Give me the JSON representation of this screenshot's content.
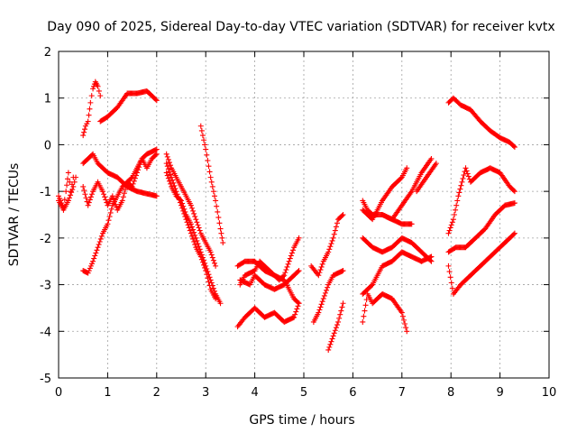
{
  "chart_data": {
    "type": "scatter",
    "title": "Day 090 of 2025, Sidereal Day-to-day VTEC variation (SDTVAR) for receiver kvtx",
    "xlabel": "GPS time / hours",
    "ylabel": "SDTVAR / TECUs",
    "xlim": [
      0,
      10
    ],
    "ylim": [
      -5,
      2
    ],
    "xticks": [
      0,
      1,
      2,
      3,
      4,
      5,
      6,
      7,
      8,
      9,
      10
    ],
    "yticks": [
      -5,
      -4,
      -3,
      -2,
      -1,
      0,
      1,
      2
    ],
    "grid": true,
    "marker": "plus",
    "color": "#ff0000",
    "series": [
      {
        "segments": [
          [
            [
              0.0,
              -1.1
            ],
            [
              0.1,
              -1.35
            ],
            [
              0.15,
              -1.0
            ],
            [
              0.2,
              -0.6
            ],
            [
              0.25,
              -1.0
            ],
            [
              0.3,
              -0.7
            ]
          ],
          [
            [
              0.0,
              -1.2
            ],
            [
              0.1,
              -1.4
            ],
            [
              0.2,
              -1.2
            ],
            [
              0.3,
              -0.9
            ],
            [
              0.35,
              -0.7
            ]
          ]
        ]
      },
      {
        "segments": [
          [
            [
              0.5,
              0.2
            ],
            [
              0.55,
              0.4
            ],
            [
              0.6,
              0.5
            ],
            [
              0.65,
              0.9
            ],
            [
              0.7,
              1.2
            ],
            [
              0.75,
              1.35
            ],
            [
              0.8,
              1.25
            ],
            [
              0.85,
              1.05
            ]
          ],
          [
            [
              0.85,
              0.5
            ],
            [
              1.0,
              0.6
            ],
            [
              1.2,
              0.8
            ],
            [
              1.4,
              1.1
            ],
            [
              1.6,
              1.1
            ],
            [
              1.8,
              1.15
            ],
            [
              2.0,
              0.95
            ]
          ],
          [
            [
              0.5,
              -0.4
            ],
            [
              0.6,
              -0.3
            ],
            [
              0.7,
              -0.2
            ],
            [
              0.8,
              -0.4
            ],
            [
              1.0,
              -0.6
            ],
            [
              1.2,
              -0.7
            ],
            [
              1.4,
              -0.9
            ],
            [
              1.6,
              -1.0
            ],
            [
              1.8,
              -1.05
            ],
            [
              2.0,
              -1.1
            ]
          ],
          [
            [
              0.5,
              -0.9
            ],
            [
              0.6,
              -1.3
            ],
            [
              0.7,
              -1.0
            ],
            [
              0.8,
              -0.8
            ],
            [
              0.9,
              -1.0
            ],
            [
              1.0,
              -1.3
            ],
            [
              1.1,
              -1.1
            ],
            [
              1.2,
              -1.4
            ],
            [
              1.3,
              -1.2
            ],
            [
              1.4,
              -0.8
            ],
            [
              1.5,
              -0.9
            ],
            [
              1.6,
              -0.6
            ],
            [
              1.7,
              -0.3
            ],
            [
              1.8,
              -0.5
            ],
            [
              1.9,
              -0.3
            ],
            [
              2.0,
              -0.2
            ]
          ],
          [
            [
              0.5,
              -2.7
            ],
            [
              0.6,
              -2.75
            ],
            [
              0.7,
              -2.5
            ],
            [
              0.8,
              -2.2
            ],
            [
              0.9,
              -1.9
            ],
            [
              1.0,
              -1.7
            ],
            [
              1.1,
              -1.3
            ],
            [
              1.2,
              -1.1
            ],
            [
              1.3,
              -0.9
            ],
            [
              1.4,
              -0.8
            ],
            [
              1.5,
              -0.7
            ],
            [
              1.6,
              -0.5
            ],
            [
              1.7,
              -0.3
            ],
            [
              1.8,
              -0.2
            ],
            [
              1.9,
              -0.15
            ],
            [
              2.0,
              -0.1
            ]
          ]
        ]
      },
      {
        "segments": [
          [
            [
              2.2,
              -0.2
            ],
            [
              2.3,
              -0.5
            ],
            [
              2.4,
              -0.7
            ],
            [
              2.5,
              -0.9
            ],
            [
              2.6,
              -1.1
            ],
            [
              2.7,
              -1.3
            ],
            [
              2.8,
              -1.6
            ],
            [
              2.9,
              -1.9
            ],
            [
              3.0,
              -2.1
            ],
            [
              3.1,
              -2.3
            ],
            [
              3.2,
              -2.6
            ]
          ],
          [
            [
              2.2,
              -0.6
            ],
            [
              2.3,
              -0.9
            ],
            [
              2.4,
              -1.1
            ],
            [
              2.5,
              -1.2
            ],
            [
              2.6,
              -1.5
            ],
            [
              2.7,
              -1.7
            ],
            [
              2.8,
              -2.0
            ],
            [
              2.9,
              -2.3
            ],
            [
              3.0,
              -2.6
            ],
            [
              3.1,
              -2.9
            ],
            [
              3.2,
              -3.2
            ],
            [
              3.3,
              -3.4
            ]
          ],
          [
            [
              2.2,
              -0.4
            ],
            [
              2.3,
              -0.7
            ],
            [
              2.4,
              -1.0
            ],
            [
              2.5,
              -1.3
            ],
            [
              2.6,
              -1.6
            ],
            [
              2.7,
              -1.9
            ],
            [
              2.8,
              -2.2
            ],
            [
              2.9,
              -2.4
            ],
            [
              3.0,
              -2.7
            ],
            [
              3.1,
              -3.1
            ],
            [
              3.2,
              -3.3
            ]
          ],
          [
            [
              2.9,
              0.4
            ],
            [
              3.0,
              -0.1
            ],
            [
              3.1,
              -0.7
            ],
            [
              3.2,
              -1.2
            ],
            [
              3.3,
              -1.8
            ],
            [
              3.35,
              -2.1
            ]
          ]
        ]
      },
      {
        "segments": [
          [
            [
              3.65,
              -2.6
            ],
            [
              3.8,
              -2.5
            ],
            [
              4.0,
              -2.5
            ],
            [
              4.2,
              -2.7
            ],
            [
              4.4,
              -2.8
            ],
            [
              4.6,
              -2.9
            ],
            [
              4.8,
              -3.3
            ],
            [
              4.9,
              -3.4
            ]
          ],
          [
            [
              3.7,
              -3.0
            ],
            [
              3.8,
              -2.8
            ],
            [
              4.0,
              -2.7
            ],
            [
              4.1,
              -2.5
            ],
            [
              4.3,
              -2.7
            ],
            [
              4.5,
              -2.9
            ],
            [
              4.6,
              -2.8
            ],
            [
              4.7,
              -2.5
            ],
            [
              4.8,
              -2.2
            ],
            [
              4.9,
              -2.0
            ]
          ],
          [
            [
              3.7,
              -2.9
            ],
            [
              3.9,
              -3.0
            ],
            [
              4.0,
              -2.8
            ],
            [
              4.2,
              -3.0
            ],
            [
              4.4,
              -3.1
            ],
            [
              4.6,
              -3.0
            ],
            [
              4.8,
              -2.8
            ],
            [
              4.9,
              -2.7
            ]
          ],
          [
            [
              3.65,
              -3.9
            ],
            [
              3.8,
              -3.7
            ],
            [
              4.0,
              -3.5
            ],
            [
              4.2,
              -3.7
            ],
            [
              4.4,
              -3.6
            ],
            [
              4.6,
              -3.8
            ],
            [
              4.8,
              -3.7
            ],
            [
              4.9,
              -3.4
            ]
          ]
        ]
      },
      {
        "segments": [
          [
            [
              5.15,
              -2.6
            ],
            [
              5.3,
              -2.8
            ],
            [
              5.4,
              -2.5
            ],
            [
              5.5,
              -2.3
            ],
            [
              5.6,
              -2.0
            ],
            [
              5.7,
              -1.6
            ],
            [
              5.8,
              -1.5
            ]
          ],
          [
            [
              5.2,
              -3.8
            ],
            [
              5.3,
              -3.6
            ],
            [
              5.4,
              -3.3
            ],
            [
              5.5,
              -3.0
            ],
            [
              5.6,
              -2.8
            ],
            [
              5.8,
              -2.7
            ]
          ],
          [
            [
              5.5,
              -4.4
            ],
            [
              5.6,
              -4.1
            ],
            [
              5.7,
              -3.8
            ],
            [
              5.8,
              -3.4
            ]
          ]
        ]
      },
      {
        "segments": [
          [
            [
              6.2,
              -1.2
            ],
            [
              6.3,
              -1.4
            ],
            [
              6.4,
              -1.5
            ],
            [
              6.6,
              -1.5
            ],
            [
              6.8,
              -1.6
            ],
            [
              7.0,
              -1.7
            ],
            [
              7.2,
              -1.7
            ]
          ],
          [
            [
              6.2,
              -2.0
            ],
            [
              6.4,
              -2.2
            ],
            [
              6.6,
              -2.3
            ],
            [
              6.8,
              -2.2
            ],
            [
              7.0,
              -2.0
            ],
            [
              7.2,
              -2.1
            ],
            [
              7.4,
              -2.3
            ],
            [
              7.6,
              -2.5
            ]
          ],
          [
            [
              6.2,
              -3.2
            ],
            [
              6.4,
              -3.0
            ],
            [
              6.5,
              -2.8
            ],
            [
              6.6,
              -2.6
            ],
            [
              6.8,
              -2.5
            ],
            [
              7.0,
              -2.3
            ],
            [
              7.2,
              -2.4
            ],
            [
              7.4,
              -2.5
            ],
            [
              7.6,
              -2.4
            ]
          ],
          [
            [
              6.2,
              -3.8
            ],
            [
              6.3,
              -3.2
            ],
            [
              6.4,
              -3.4
            ],
            [
              6.6,
              -3.2
            ],
            [
              6.8,
              -3.3
            ],
            [
              7.0,
              -3.6
            ],
            [
              7.1,
              -4.0
            ]
          ],
          [
            [
              6.2,
              -1.4
            ],
            [
              6.4,
              -1.6
            ],
            [
              6.6,
              -1.2
            ],
            [
              6.8,
              -0.9
            ],
            [
              7.0,
              -0.7
            ],
            [
              7.1,
              -0.5
            ]
          ],
          [
            [
              6.6,
              -1.5
            ],
            [
              6.8,
              -1.6
            ],
            [
              7.0,
              -1.3
            ],
            [
              7.2,
              -1.0
            ],
            [
              7.4,
              -0.6
            ],
            [
              7.6,
              -0.3
            ]
          ],
          [
            [
              7.3,
              -1.0
            ],
            [
              7.5,
              -0.7
            ],
            [
              7.7,
              -0.4
            ]
          ]
        ]
      },
      {
        "segments": [
          [
            [
              7.95,
              0.9
            ],
            [
              8.05,
              1.0
            ],
            [
              8.2,
              0.85
            ],
            [
              8.4,
              0.75
            ],
            [
              8.6,
              0.5
            ],
            [
              8.8,
              0.3
            ],
            [
              9.0,
              0.15
            ],
            [
              9.2,
              0.05
            ],
            [
              9.3,
              -0.05
            ]
          ],
          [
            [
              7.95,
              -1.9
            ],
            [
              8.05,
              -1.6
            ],
            [
              8.15,
              -1.1
            ],
            [
              8.3,
              -0.5
            ],
            [
              8.4,
              -0.8
            ],
            [
              8.6,
              -0.6
            ],
            [
              8.8,
              -0.5
            ],
            [
              9.0,
              -0.6
            ],
            [
              9.2,
              -0.9
            ],
            [
              9.3,
              -1.0
            ]
          ],
          [
            [
              7.95,
              -2.3
            ],
            [
              8.1,
              -2.2
            ],
            [
              8.3,
              -2.2
            ],
            [
              8.5,
              -2.0
            ],
            [
              8.7,
              -1.8
            ],
            [
              8.9,
              -1.5
            ],
            [
              9.1,
              -1.3
            ],
            [
              9.3,
              -1.25
            ]
          ],
          [
            [
              7.95,
              -2.6
            ],
            [
              8.05,
              -3.2
            ],
            [
              8.2,
              -3.0
            ],
            [
              8.4,
              -2.8
            ],
            [
              8.6,
              -2.6
            ],
            [
              8.8,
              -2.4
            ],
            [
              9.0,
              -2.2
            ],
            [
              9.2,
              -2.0
            ],
            [
              9.3,
              -1.9
            ]
          ]
        ]
      }
    ]
  }
}
